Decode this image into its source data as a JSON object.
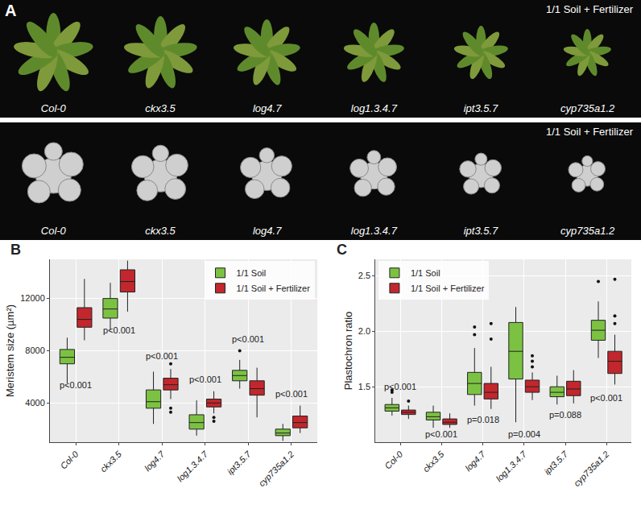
{
  "panel_a": {
    "label": "A",
    "rows": [
      {
        "caption": "1/1 Soil + Fertilizer",
        "labels": [
          "Col-0",
          "ckx3.5",
          "log4.7",
          "log1.3.4.7",
          "ipt3.5.7",
          "cyp735a1.2"
        ]
      },
      {
        "caption": "1/1 Soil + Fertilizer",
        "labels": [
          "Col-0",
          "ckx3.5",
          "log4.7",
          "log1.3.4.7",
          "ipt3.5.7",
          "cyp735a1.2"
        ]
      }
    ]
  },
  "chart_data": [
    {
      "type": "box",
      "title": "B",
      "y_label": "Meristem size (µm²)",
      "categories": [
        "Col-0",
        "ckx3.5",
        "log4.7",
        "log1.3.4.7",
        "ipt3.5.7",
        "cyp735a1.2"
      ],
      "ylim": [
        1000,
        15000
      ],
      "yticks": [
        4000,
        8000,
        12000
      ],
      "grid": true,
      "legend": "top-right",
      "series": [
        {
          "name": "1/1 Soil",
          "color": "#7cc242",
          "lower_whisker": [
            5500,
            9600,
            2400,
            1500,
            5100,
            1100
          ],
          "q1": [
            7000,
            10500,
            3600,
            2000,
            5700,
            1500
          ],
          "median": [
            7500,
            11200,
            4100,
            2500,
            6100,
            1700
          ],
          "q3": [
            8100,
            12000,
            5000,
            3100,
            6500,
            2000
          ],
          "upper_whisker": [
            9000,
            13200,
            6400,
            4200,
            7300,
            2400
          ],
          "outliers": [
            [],
            [],
            [],
            [],
            [
              8000
            ],
            []
          ]
        },
        {
          "name": "1/1 Soil + Fertilizer",
          "color": "#c1272d",
          "lower_whisker": [
            8800,
            11000,
            4300,
            3200,
            2900,
            1700
          ],
          "q1": [
            9800,
            12500,
            5000,
            3700,
            4600,
            2100
          ],
          "median": [
            10400,
            13300,
            5400,
            4000,
            5100,
            2500
          ],
          "q3": [
            11300,
            14200,
            5900,
            4300,
            5700,
            3000
          ],
          "upper_whisker": [
            13500,
            14900,
            6600,
            4900,
            6700,
            3800
          ],
          "outliers": [
            [],
            [],
            [
              7000,
              3600,
              3300
            ],
            [
              2900,
              2600
            ],
            [],
            []
          ]
        }
      ],
      "annotations": [
        {
          "text": "p<0.001",
          "x": "Col-0",
          "y": 5400
        },
        {
          "text": "p<0.001",
          "x": "ckx3.5",
          "y": 9600
        },
        {
          "text": "p<0.001",
          "x": "log4.7",
          "y": 7600
        },
        {
          "text": "p<0.001",
          "x": "log1.3.4.7",
          "y": 5800
        },
        {
          "text": "p<0.001",
          "x": "ipt3.5.7",
          "y": 8900
        },
        {
          "text": "p<0.001",
          "x": "cyp735a1.2",
          "y": 4700
        }
      ]
    },
    {
      "type": "box",
      "title": "C",
      "y_label": "Plastochron ratio",
      "categories": [
        "Col-0",
        "ckx3.5",
        "log4.7",
        "log1.3.4.7",
        "ipt3.5.7",
        "cyp735a1.2"
      ],
      "ylim": [
        1.0,
        2.65
      ],
      "yticks": [
        1.5,
        {
          "value": 2,
          "label": "2.0"
        },
        2.5
      ],
      "grid": true,
      "legend": "top-left",
      "series": [
        {
          "name": "1/1 Soil",
          "color": "#7cc242",
          "lower_whisker": [
            1.24,
            1.13,
            1.33,
            1.18,
            1.34,
            1.76
          ],
          "q1": [
            1.28,
            1.2,
            1.43,
            1.57,
            1.41,
            1.92
          ],
          "median": [
            1.31,
            1.23,
            1.53,
            1.82,
            1.45,
            2.01
          ],
          "q3": [
            1.34,
            1.27,
            1.63,
            2.08,
            1.5,
            2.1
          ],
          "upper_whisker": [
            1.4,
            1.33,
            1.85,
            2.22,
            1.6,
            2.27
          ],
          "outliers": [
            [
              1.45,
              1.47
            ],
            [],
            [
              2.04,
              1.97
            ],
            [],
            [],
            [
              2.45
            ]
          ]
        },
        {
          "name": "1/1 Soil + Fertilizer",
          "color": "#c1272d",
          "lower_whisker": [
            1.21,
            1.13,
            1.3,
            1.38,
            1.35,
            1.52
          ],
          "q1": [
            1.25,
            1.16,
            1.39,
            1.45,
            1.42,
            1.62
          ],
          "median": [
            1.27,
            1.18,
            1.45,
            1.5,
            1.48,
            1.73
          ],
          "q3": [
            1.29,
            1.21,
            1.53,
            1.56,
            1.55,
            1.82
          ],
          "upper_whisker": [
            1.33,
            1.26,
            1.68,
            1.63,
            1.65,
            1.97
          ],
          "outliers": [
            [
              1.37
            ],
            [],
            [
              1.93,
              2.07
            ],
            [
              1.68,
              1.73,
              1.78
            ],
            [],
            [
              2.47,
              2.14,
              2.07
            ]
          ]
        }
      ],
      "annotations": [
        {
          "text": "p<0.001",
          "x": "Col-0",
          "y": 1.5
        },
        {
          "text": "p<0.001",
          "x": "ckx3.5",
          "y": 1.07
        },
        {
          "text": "p=0.018",
          "x": "log4.7",
          "y": 1.2
        },
        {
          "text": "p=0.004",
          "x": "log1.3.4.7",
          "y": 1.07
        },
        {
          "text": "p=0.088",
          "x": "ipt3.5.7",
          "y": 1.25
        },
        {
          "text": "p<0.001",
          "x": "cyp735a1.2",
          "y": 1.4
        }
      ]
    }
  ]
}
